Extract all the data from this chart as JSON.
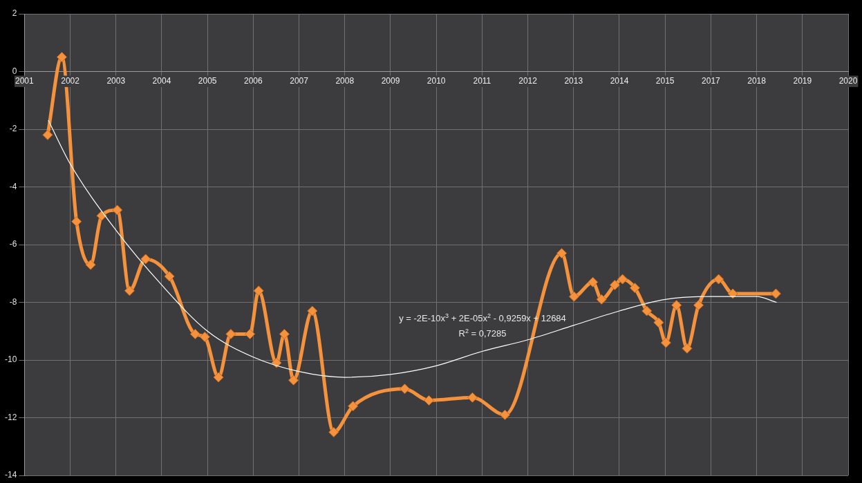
{
  "chart_data": {
    "type": "line",
    "xlim": [
      "2001-01-01",
      "2020-03-22"
    ],
    "xticks": [
      {
        "value": "2001-01-01",
        "label": "2001"
      },
      {
        "value": "2002-01-26",
        "label": "2002"
      },
      {
        "value": "2003-02-20",
        "label": "2003"
      },
      {
        "value": "2004-03-16",
        "label": "2004"
      },
      {
        "value": "2005-04-10",
        "label": "2005"
      },
      {
        "value": "2006-05-05",
        "label": "2006"
      },
      {
        "value": "2007-05-30",
        "label": "2007"
      },
      {
        "value": "2008-06-23",
        "label": "2008"
      },
      {
        "value": "2009-07-18",
        "label": "2009"
      },
      {
        "value": "2010-08-12",
        "label": "2010"
      },
      {
        "value": "2011-09-06",
        "label": "2011"
      },
      {
        "value": "2012-09-30",
        "label": "2012"
      },
      {
        "value": "2013-10-25",
        "label": "2013"
      },
      {
        "value": "2014-11-19",
        "label": "2014"
      },
      {
        "value": "2015-12-14",
        "label": "2015"
      },
      {
        "value": "2017-01-07",
        "label": "2017"
      },
      {
        "value": "2018-02-01",
        "label": "2018"
      },
      {
        "value": "2019-02-26",
        "label": "2019"
      },
      {
        "value": "2020-03-22",
        "label": "2020"
      }
    ],
    "ylim": [
      -14,
      2
    ],
    "yticks": [
      -14,
      -12,
      -10,
      -8,
      -6,
      -4,
      -2,
      0,
      2
    ],
    "grid": true,
    "marker": "diamond",
    "line_style": "solid",
    "annotations": [
      "y = -2E-10x$^{3}$ + 2E-05x$^{2}$ - 0,9259x + 12684",
      "R$^{2}$ = 0,7285"
    ],
    "series": [
      {
        "color": "#f5923e",
        "x": [
          "2001-07-18",
          "2001-11-16",
          "2002-03-21",
          "2002-07-19",
          "2002-10-21",
          "2003-03-03",
          "2003-06-16",
          "2003-10-31",
          "2004-05-21",
          "2004-12-26",
          "2005-03-18",
          "2005-07-13",
          "2005-10-26",
          "2006-04-07",
          "2006-06-20",
          "2006-11-19",
          "2007-01-25",
          "2007-04-13",
          "2007-09-20",
          "2008-03-21",
          "2008-09-01",
          "2009-11-16",
          "2010-06-10",
          "2011-06-16",
          "2012-03-19",
          "2013-07-16",
          "2013-10-29",
          "2014-04-07",
          "2014-06-20",
          "2014-10-11",
          "2014-12-16",
          "2015-03-31",
          "2015-07-11",
          "2015-10-20",
          "2015-12-21",
          "2016-03-20",
          "2016-06-18",
          "2016-09-24",
          "2017-03-14",
          "2017-07-13",
          "2018-07-15"
        ],
        "values": [
          -2.2,
          0.5,
          -5.2,
          -6.7,
          -5.0,
          -4.8,
          -7.6,
          -6.5,
          -7.1,
          -9.1,
          -9.2,
          -10.6,
          -9.1,
          -9.1,
          -7.6,
          -10.1,
          -9.1,
          -10.7,
          -8.3,
          -12.5,
          -11.6,
          -11.0,
          -11.4,
          -11.3,
          -11.9,
          -6.3,
          -7.8,
          -7.3,
          -7.9,
          -7.4,
          -7.2,
          -7.5,
          -8.3,
          -8.7,
          -9.4,
          -8.1,
          -9.6,
          -8.1,
          -7.2,
          -7.7,
          -7.7
        ]
      },
      {
        "type": "line",
        "color": "#ffffff",
        "marker": "none",
        "x": [
          "2001-07-25",
          "2002-01-26",
          "2003-02-20",
          "2004-03-16",
          "2005-04-10",
          "2006-05-05",
          "2007-05-30",
          "2008-06-23",
          "2009-07-18",
          "2010-08-12",
          "2011-09-06",
          "2012-09-30",
          "2013-10-25",
          "2014-11-19",
          "2015-12-14",
          "2017-01-07",
          "2018-02-01",
          "2018-07-19"
        ],
        "values": [
          -1.7,
          -3.2,
          -5.5,
          -7.4,
          -9.0,
          -9.9,
          -10.4,
          -10.6,
          -10.5,
          -10.2,
          -9.7,
          -9.3,
          -8.8,
          -8.3,
          -7.9,
          -7.8,
          -7.8,
          -8.0
        ]
      }
    ]
  }
}
